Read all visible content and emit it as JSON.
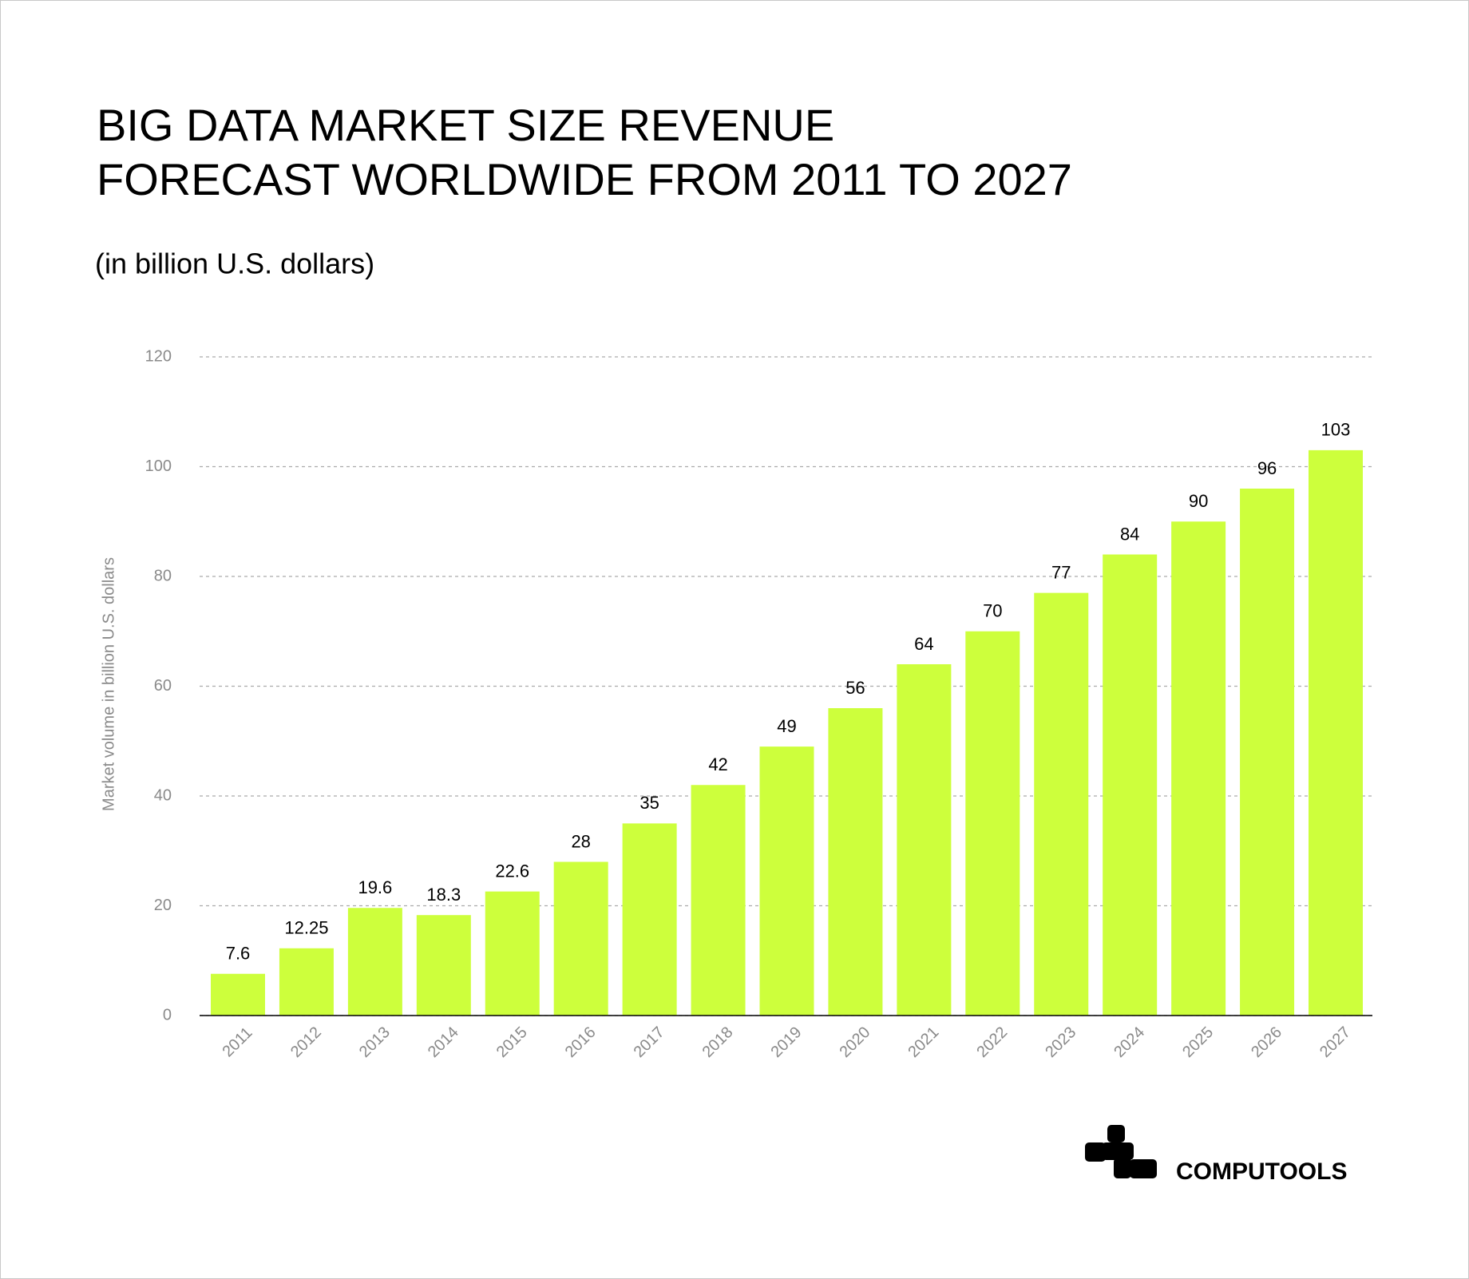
{
  "chart_data": {
    "type": "bar",
    "title": [
      "BIG DATA MARKET SIZE REVENUE",
      "FORECAST WORLDWIDE FROM 2011 TO 2027"
    ],
    "subtitle": "(in billion U.S. dollars)",
    "y_label": "Market volume in billion U.S. dollars",
    "categories": [
      "2011",
      "2012",
      "2013",
      "2014",
      "2015",
      "2016",
      "2017",
      "2018",
      "2019",
      "2020",
      "2021",
      "2022",
      "2023",
      "2024",
      "2025",
      "2026",
      "2027"
    ],
    "values": [
      7.6,
      12.25,
      19.6,
      18.3,
      22.6,
      28,
      35,
      42,
      49,
      56,
      64,
      70,
      77,
      84,
      90,
      96,
      103
    ],
    "color": "#cdff3c",
    "ylim": [
      0,
      120
    ],
    "yticks": [
      0,
      20,
      40,
      60,
      80,
      100,
      120
    ],
    "grid": true,
    "brand": "COMPUTOOLS"
  }
}
